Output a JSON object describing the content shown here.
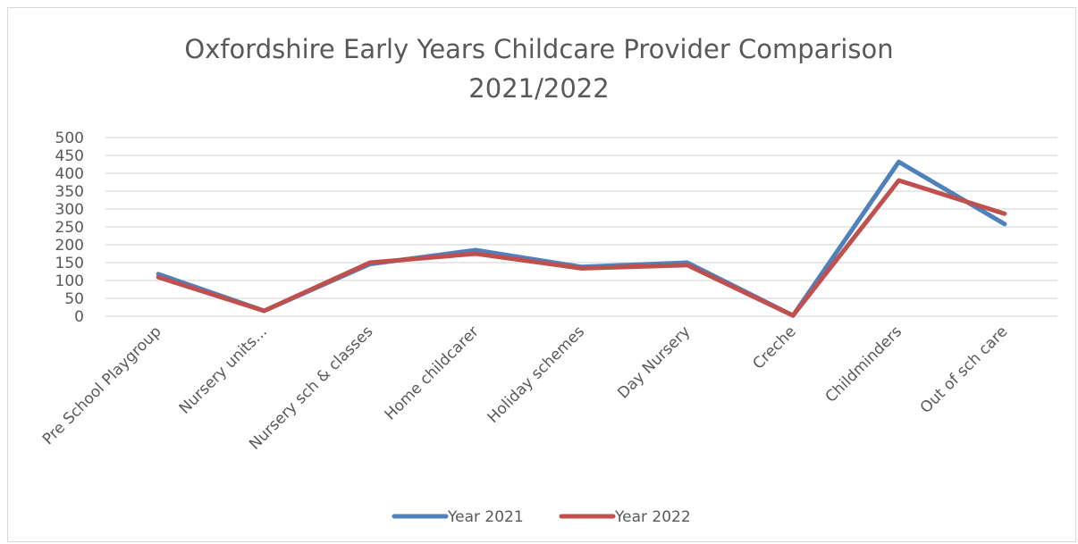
{
  "chart_data": {
    "type": "line",
    "title_line1": "Oxfordshire Early Years Childcare Provider Comparison",
    "title_line2": "2021/2022",
    "xlabel": "",
    "ylabel": "",
    "ylim": [
      0,
      500
    ],
    "yticks": [
      0,
      50,
      100,
      150,
      200,
      250,
      300,
      350,
      400,
      450,
      500
    ],
    "categories": [
      "Pre School Playgroup",
      "Nursery units...",
      "Nursery sch & classes",
      "Home childcarer",
      "Holiday schemes",
      "Day Nursery",
      "Creche",
      "Childminders",
      "Out of sch care"
    ],
    "series": [
      {
        "name": "Year 2021",
        "color": "#4f81bd",
        "values": [
          118,
          15,
          146,
          185,
          138,
          150,
          2,
          432,
          258
        ]
      },
      {
        "name": "Year 2022",
        "color": "#c0504d",
        "values": [
          109,
          15,
          150,
          175,
          134,
          143,
          2,
          380,
          287
        ]
      }
    ],
    "grid": true,
    "legend_position": "bottom"
  }
}
